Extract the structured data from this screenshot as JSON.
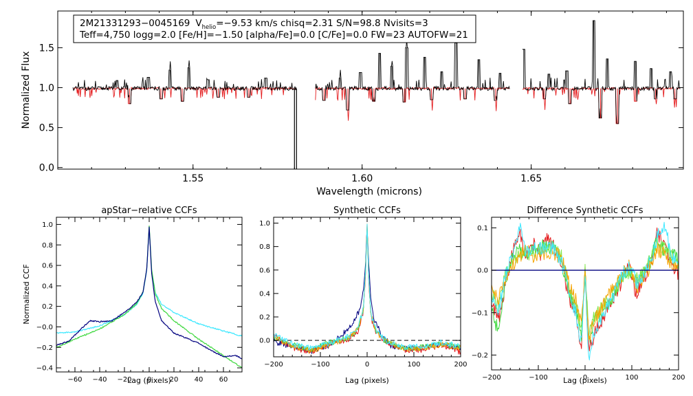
{
  "colors": {
    "black": "#000000",
    "red": "#e41a1c",
    "navy": "#00007f",
    "cyan": "#3de8ff",
    "green": "#3fd83f",
    "lime": "#7fe64a",
    "orange": "#f5a300",
    "gold": "#e8e800"
  },
  "chart_data": [
    {
      "id": "spectrum",
      "type": "line",
      "title": "",
      "xlabel": "Wavelength (microns)",
      "ylabel": "Normalized Flux",
      "xlim": [
        1.51,
        1.695
      ],
      "ylim": [
        -0.02,
        1.96
      ],
      "xticks": [
        1.55,
        1.6,
        1.65
      ],
      "xtick_labels": [
        "1.55",
        "1.60",
        "1.65"
      ],
      "yticks": [
        0.0,
        0.5,
        1.0,
        1.5
      ],
      "ytick_labels": [
        "0.0",
        "0.5",
        "1.0",
        "1.5"
      ],
      "legend": {
        "star_id": "2M21331293−0045169",
        "v_label": "V",
        "v_sub": "helio",
        "v_value": "=−9.53 km/s  chisq=2.31  S/N=98.8  Nvisits=3",
        "line2": "Teff=4,750 logg=2.0 [Fe/H]=−1.50 [alpha/Fe]=0.0 [C/Fe]=0.0 FW=23 AUTOFW=21"
      },
      "continuum": 0.99,
      "chips": [
        [
          1.5145,
          1.5805
        ],
        [
          1.5862,
          1.6436
        ],
        [
          1.6474,
          1.694
        ]
      ],
      "gap_dropout": {
        "x": 1.5803,
        "y_min": -0.02
      },
      "emission_spikes": [
        {
          "x": 1.5275,
          "y": 1.09
        },
        {
          "x": 1.5368,
          "y": 1.13
        },
        {
          "x": 1.5432,
          "y": 1.22
        },
        {
          "x": 1.5488,
          "y": 1.25
        },
        {
          "x": 1.5545,
          "y": 1.1
        },
        {
          "x": 1.5715,
          "y": 1.12
        },
        {
          "x": 1.5935,
          "y": 1.12
        },
        {
          "x": 1.5995,
          "y": 1.19
        },
        {
          "x": 1.6052,
          "y": 1.43
        },
        {
          "x": 1.6088,
          "y": 1.27
        },
        {
          "x": 1.6132,
          "y": 1.5
        },
        {
          "x": 1.6185,
          "y": 1.38
        },
        {
          "x": 1.6235,
          "y": 1.2
        },
        {
          "x": 1.6278,
          "y": 1.56
        },
        {
          "x": 1.6345,
          "y": 1.35
        },
        {
          "x": 1.6408,
          "y": 1.18
        },
        {
          "x": 1.6478,
          "y": 1.48
        },
        {
          "x": 1.6552,
          "y": 1.17
        },
        {
          "x": 1.6605,
          "y": 1.21
        },
        {
          "x": 1.6685,
          "y": 1.84
        },
        {
          "x": 1.6725,
          "y": 1.36
        },
        {
          "x": 1.6808,
          "y": 1.33
        },
        {
          "x": 1.6855,
          "y": 1.24
        },
        {
          "x": 1.6912,
          "y": 1.2
        }
      ],
      "absorption_lines": [
        {
          "x": 1.5312,
          "y": 0.8
        },
        {
          "x": 1.5405,
          "y": 0.86
        },
        {
          "x": 1.5468,
          "y": 0.83
        },
        {
          "x": 1.5575,
          "y": 0.88
        },
        {
          "x": 1.5665,
          "y": 0.88
        },
        {
          "x": 1.5888,
          "y": 0.84
        },
        {
          "x": 1.5958,
          "y": 0.72
        },
        {
          "x": 1.6035,
          "y": 0.83
        },
        {
          "x": 1.6125,
          "y": 0.82
        },
        {
          "x": 1.6205,
          "y": 0.85
        },
        {
          "x": 1.6305,
          "y": 0.86
        },
        {
          "x": 1.6395,
          "y": 0.84
        },
        {
          "x": 1.6538,
          "y": 0.86
        },
        {
          "x": 1.6615,
          "y": 0.8
        },
        {
          "x": 1.6705,
          "y": 0.62
        },
        {
          "x": 1.6755,
          "y": 0.55
        },
        {
          "x": 1.6808,
          "y": 0.83
        },
        {
          "x": 1.6868,
          "y": 0.86
        },
        {
          "x": 1.6925,
          "y": 0.86
        }
      ]
    },
    {
      "id": "apstar",
      "type": "line",
      "title": "apStar−relative CCFs",
      "xlabel": "Lag (pixels)",
      "ylabel": "Normalized CCF",
      "xlim": [
        -75,
        75
      ],
      "ylim": [
        -0.44,
        1.07
      ],
      "xticks": [
        -60,
        -40,
        -20,
        0,
        20,
        40,
        60
      ],
      "xtick_labels": [
        "−60",
        "−40",
        "−20",
        "0",
        "20",
        "40",
        "60"
      ],
      "yticks": [
        -0.4,
        -0.2,
        0.0,
        0.2,
        0.4,
        0.6,
        0.8,
        1.0
      ],
      "ytick_labels": [
        "−0.4",
        "−0.2",
        "−0.0",
        "0.2",
        "0.4",
        "0.6",
        "0.8",
        "1.0"
      ],
      "series": [
        {
          "name": "cyan",
          "color": "cyan",
          "x": [
            -75,
            -60,
            -40,
            -20,
            -10,
            -5,
            -2,
            0,
            2,
            5,
            10,
            20,
            40,
            60,
            75
          ],
          "y": [
            -0.06,
            -0.05,
            0.01,
            0.12,
            0.22,
            0.33,
            0.55,
            0.97,
            0.55,
            0.33,
            0.22,
            0.14,
            0.03,
            -0.04,
            -0.09
          ]
        },
        {
          "name": "green",
          "color": "green",
          "x": [
            -75,
            -60,
            -40,
            -20,
            -10,
            -5,
            -2,
            0,
            2,
            5,
            10,
            20,
            40,
            60,
            75
          ],
          "y": [
            -0.2,
            -0.12,
            -0.02,
            0.12,
            0.23,
            0.34,
            0.56,
            0.99,
            0.56,
            0.32,
            0.18,
            0.06,
            -0.12,
            -0.28,
            -0.4
          ]
        },
        {
          "name": "navy",
          "color": "navy",
          "x": [
            -75,
            -65,
            -55,
            -48,
            -40,
            -30,
            -20,
            -10,
            -5,
            -2,
            0,
            2,
            5,
            10,
            20,
            30,
            40,
            50,
            60,
            70,
            75
          ],
          "y": [
            -0.18,
            -0.14,
            -0.02,
            0.06,
            0.05,
            0.06,
            0.14,
            0.24,
            0.34,
            0.56,
            0.98,
            0.52,
            0.24,
            0.06,
            -0.06,
            -0.11,
            -0.16,
            -0.23,
            -0.29,
            -0.28,
            -0.31
          ]
        }
      ]
    },
    {
      "id": "synthetic",
      "type": "line",
      "title": "Synthetic CCFs",
      "xlabel": "Lag (pixels)",
      "ylabel": "",
      "xlim": [
        -200,
        200
      ],
      "ylim": [
        -0.14,
        1.05
      ],
      "xticks": [
        -200,
        -100,
        0,
        100,
        200
      ],
      "xtick_labels": [
        "−200",
        "−100",
        "0",
        "100",
        "200"
      ],
      "yticks": [
        0.0,
        0.2,
        0.4,
        0.6,
        0.8,
        1.0
      ],
      "ytick_labels": [
        "0.0",
        "0.2",
        "0.4",
        "0.6",
        "0.8",
        "1.0"
      ],
      "zero_line": 0.0,
      "series": [
        {
          "name": "navy",
          "color": "navy",
          "x": [
            -200,
            -160,
            -120,
            -80,
            -50,
            -30,
            -15,
            -8,
            -3,
            0,
            3,
            8,
            15,
            30,
            50,
            80,
            120,
            160,
            200
          ],
          "y": [
            -0.01,
            -0.05,
            -0.09,
            -0.04,
            0.06,
            0.14,
            0.27,
            0.42,
            0.7,
            0.98,
            0.66,
            0.36,
            0.18,
            0.05,
            -0.04,
            -0.07,
            -0.06,
            -0.03,
            -0.07
          ]
        },
        {
          "name": "red",
          "color": "red",
          "x": [
            -200,
            -160,
            -120,
            -80,
            -40,
            -20,
            -8,
            -3,
            0,
            3,
            8,
            20,
            40,
            80,
            120,
            160,
            200
          ],
          "y": [
            0.04,
            -0.06,
            -0.1,
            -0.03,
            0.01,
            0.08,
            0.25,
            0.6,
            1.0,
            0.55,
            0.2,
            0.06,
            -0.02,
            -0.08,
            -0.08,
            -0.04,
            -0.1
          ]
        },
        {
          "name": "green",
          "color": "green",
          "x": [
            -200,
            -160,
            -120,
            -80,
            -40,
            -20,
            -8,
            -3,
            0,
            3,
            8,
            20,
            40,
            80,
            120,
            160,
            200
          ],
          "y": [
            0.02,
            -0.04,
            -0.08,
            -0.02,
            0.02,
            0.09,
            0.26,
            0.62,
            0.99,
            0.57,
            0.22,
            0.07,
            -0.01,
            -0.07,
            -0.06,
            -0.03,
            -0.06
          ]
        },
        {
          "name": "orange",
          "color": "orange",
          "x": [
            -200,
            -160,
            -120,
            -80,
            -40,
            -20,
            -8,
            -3,
            0,
            3,
            8,
            20,
            40,
            80,
            120,
            160,
            200
          ],
          "y": [
            0.03,
            -0.05,
            -0.09,
            -0.03,
            0.02,
            0.09,
            0.26,
            0.61,
            0.99,
            0.56,
            0.21,
            0.07,
            -0.01,
            -0.07,
            -0.07,
            -0.03,
            -0.07
          ]
        },
        {
          "name": "cyan",
          "color": "cyan",
          "x": [
            -200,
            -160,
            -120,
            -80,
            -40,
            -20,
            -8,
            -3,
            0,
            3,
            8,
            20,
            40,
            80,
            120,
            160,
            200
          ],
          "y": [
            0.05,
            -0.03,
            -0.07,
            -0.02,
            0.03,
            0.1,
            0.27,
            0.62,
            0.99,
            0.57,
            0.22,
            0.08,
            0.0,
            -0.06,
            -0.05,
            -0.02,
            -0.05
          ]
        }
      ]
    },
    {
      "id": "difference",
      "type": "line",
      "title": "Difference Synthetic CCFs",
      "xlabel": "Lag (pixels)",
      "ylabel": "",
      "xlim": [
        -200,
        200
      ],
      "ylim": [
        -0.235,
        0.125
      ],
      "xticks": [
        -200,
        -100,
        0,
        100,
        200
      ],
      "xtick_labels": [
        "−200",
        "−100",
        "0",
        "100",
        "200"
      ],
      "yticks": [
        -0.2,
        -0.1,
        0.0,
        0.1
      ],
      "ytick_labels": [
        "−0.2",
        "−0.1",
        "0.0",
        "0.1"
      ],
      "zero_line": 0.0,
      "series": [
        {
          "name": "red",
          "color": "red",
          "x": [
            -200,
            -185,
            -170,
            -155,
            -140,
            -125,
            -110,
            -95,
            -80,
            -65,
            -50,
            -35,
            -20,
            -8,
            0,
            8,
            20,
            35,
            50,
            65,
            80,
            95,
            110,
            125,
            140,
            155,
            170,
            185,
            200
          ],
          "y": [
            -0.07,
            -0.12,
            -0.03,
            0.04,
            0.09,
            0.03,
            0.06,
            0.04,
            0.08,
            0.05,
            0.02,
            -0.06,
            -0.11,
            -0.18,
            0.0,
            -0.19,
            -0.15,
            -0.12,
            -0.08,
            -0.06,
            -0.02,
            0.01,
            -0.06,
            -0.02,
            0.01,
            0.09,
            0.06,
            0.02,
            -0.01
          ]
        },
        {
          "name": "green",
          "color": "green",
          "x": [
            -200,
            -185,
            -170,
            -155,
            -140,
            -125,
            -110,
            -95,
            -80,
            -65,
            -50,
            -35,
            -20,
            -8,
            0,
            8,
            20,
            35,
            50,
            65,
            80,
            95,
            110,
            125,
            140,
            155,
            170,
            185,
            200
          ],
          "y": [
            -0.09,
            -0.15,
            -0.02,
            0.03,
            0.05,
            0.04,
            0.05,
            0.06,
            0.05,
            0.06,
            0.02,
            -0.05,
            -0.09,
            -0.16,
            0.0,
            -0.17,
            -0.12,
            -0.1,
            -0.08,
            -0.05,
            -0.01,
            0.0,
            -0.03,
            -0.01,
            0.03,
            0.07,
            0.05,
            0.04,
            0.02
          ]
        },
        {
          "name": "lime",
          "color": "lime",
          "x": [
            -200,
            -185,
            -170,
            -155,
            -140,
            -125,
            -110,
            -95,
            -80,
            -65,
            -50,
            -35,
            -20,
            -8,
            0,
            8,
            20,
            35,
            50,
            65,
            80,
            95,
            110,
            125,
            140,
            155,
            170,
            185,
            200
          ],
          "y": [
            -0.05,
            -0.09,
            -0.01,
            0.02,
            0.04,
            0.03,
            0.04,
            0.05,
            0.06,
            0.05,
            0.03,
            -0.04,
            -0.08,
            -0.14,
            0.0,
            -0.15,
            -0.11,
            -0.09,
            -0.07,
            -0.04,
            -0.02,
            0.0,
            -0.02,
            0.0,
            0.02,
            0.06,
            0.05,
            0.03,
            0.01
          ]
        },
        {
          "name": "orange",
          "color": "orange",
          "x": [
            -200,
            -185,
            -170,
            -155,
            -140,
            -125,
            -110,
            -95,
            -80,
            -65,
            -50,
            -35,
            -20,
            -8,
            0,
            8,
            20,
            35,
            50,
            65,
            80,
            95,
            110,
            125,
            140,
            155,
            170,
            185,
            200
          ],
          "y": [
            -0.04,
            -0.07,
            -0.02,
            0.01,
            0.03,
            0.05,
            0.02,
            0.04,
            0.03,
            0.04,
            0.03,
            -0.03,
            -0.07,
            -0.13,
            0.0,
            -0.16,
            -0.12,
            -0.09,
            -0.06,
            -0.03,
            -0.01,
            0.01,
            -0.04,
            -0.02,
            0.01,
            0.05,
            0.04,
            0.01,
            0.0
          ]
        },
        {
          "name": "cyan",
          "color": "cyan",
          "x": [
            -200,
            -185,
            -170,
            -155,
            -140,
            -125,
            -110,
            -95,
            -80,
            -65,
            -50,
            -35,
            -20,
            -8,
            0,
            8,
            20,
            35,
            50,
            65,
            80,
            95,
            110,
            125,
            140,
            155,
            170,
            185,
            200
          ],
          "y": [
            -0.06,
            -0.1,
            -0.01,
            0.04,
            0.1,
            0.04,
            0.05,
            0.05,
            0.06,
            0.05,
            0.02,
            -0.05,
            -0.1,
            -0.17,
            0.0,
            -0.22,
            -0.14,
            -0.11,
            -0.08,
            -0.05,
            -0.01,
            0.01,
            -0.03,
            -0.01,
            0.02,
            0.08,
            0.11,
            0.03,
            0.01
          ]
        }
      ]
    }
  ]
}
